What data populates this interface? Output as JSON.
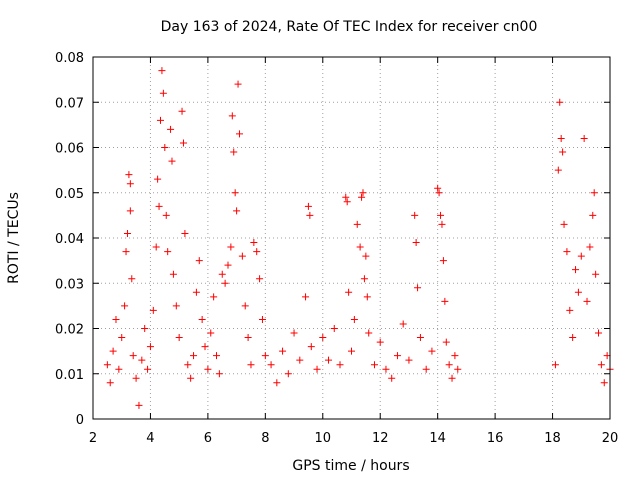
{
  "chart_data": {
    "type": "scatter",
    "title": "Day 163 of 2024, Rate Of TEC Index for receiver cn00",
    "xlabel": "GPS time / hours",
    "ylabel": "ROTI / TECUs",
    "xlim": [
      2,
      20
    ],
    "ylim": [
      0,
      0.08
    ],
    "x_ticks": [
      2,
      4,
      6,
      8,
      10,
      12,
      14,
      16,
      18,
      20
    ],
    "y_ticks": [
      0,
      0.01,
      0.02,
      0.03,
      0.04,
      0.05,
      0.06,
      0.07,
      0.08
    ],
    "x_tick_labels": [
      "2",
      "4",
      "6",
      "8",
      "10",
      "12",
      "14",
      "16",
      "18",
      "20"
    ],
    "y_tick_labels": [
      "0",
      "0.01",
      "0.02",
      "0.03",
      "0.04",
      "0.05",
      "0.06",
      "0.07",
      "0.08"
    ],
    "grid": true,
    "marker": "+",
    "color": "#ff0000",
    "series": [
      {
        "name": "ROTI",
        "points": [
          [
            2.5,
            0.012
          ],
          [
            2.6,
            0.008
          ],
          [
            2.7,
            0.015
          ],
          [
            2.8,
            0.022
          ],
          [
            2.9,
            0.011
          ],
          [
            3.0,
            0.018
          ],
          [
            3.1,
            0.025
          ],
          [
            3.15,
            0.037
          ],
          [
            3.2,
            0.041
          ],
          [
            3.25,
            0.054
          ],
          [
            3.3,
            0.052
          ],
          [
            3.3,
            0.046
          ],
          [
            3.35,
            0.031
          ],
          [
            3.4,
            0.014
          ],
          [
            3.5,
            0.009
          ],
          [
            3.6,
            0.003
          ],
          [
            3.7,
            0.013
          ],
          [
            3.8,
            0.02
          ],
          [
            3.9,
            0.011
          ],
          [
            4.0,
            0.016
          ],
          [
            4.1,
            0.024
          ],
          [
            4.2,
            0.038
          ],
          [
            4.25,
            0.053
          ],
          [
            4.3,
            0.047
          ],
          [
            4.35,
            0.066
          ],
          [
            4.4,
            0.077
          ],
          [
            4.45,
            0.072
          ],
          [
            4.5,
            0.06
          ],
          [
            4.55,
            0.045
          ],
          [
            4.6,
            0.037
          ],
          [
            4.7,
            0.064
          ],
          [
            4.75,
            0.057
          ],
          [
            4.8,
            0.032
          ],
          [
            4.9,
            0.025
          ],
          [
            5.0,
            0.018
          ],
          [
            5.1,
            0.068
          ],
          [
            5.15,
            0.061
          ],
          [
            5.2,
            0.041
          ],
          [
            5.3,
            0.012
          ],
          [
            5.4,
            0.009
          ],
          [
            5.5,
            0.014
          ],
          [
            5.6,
            0.028
          ],
          [
            5.7,
            0.035
          ],
          [
            5.8,
            0.022
          ],
          [
            5.9,
            0.016
          ],
          [
            6.0,
            0.011
          ],
          [
            6.1,
            0.019
          ],
          [
            6.2,
            0.027
          ],
          [
            6.3,
            0.014
          ],
          [
            6.4,
            0.01
          ],
          [
            6.5,
            0.032
          ],
          [
            6.6,
            0.03
          ],
          [
            6.7,
            0.034
          ],
          [
            6.8,
            0.038
          ],
          [
            6.85,
            0.067
          ],
          [
            6.9,
            0.059
          ],
          [
            6.95,
            0.05
          ],
          [
            7.0,
            0.046
          ],
          [
            7.05,
            0.074
          ],
          [
            7.1,
            0.063
          ],
          [
            7.2,
            0.036
          ],
          [
            7.3,
            0.025
          ],
          [
            7.4,
            0.018
          ],
          [
            7.5,
            0.012
          ],
          [
            7.6,
            0.039
          ],
          [
            7.7,
            0.037
          ],
          [
            7.8,
            0.031
          ],
          [
            7.9,
            0.022
          ],
          [
            8.0,
            0.014
          ],
          [
            8.2,
            0.012
          ],
          [
            8.4,
            0.008
          ],
          [
            8.6,
            0.015
          ],
          [
            8.8,
            0.01
          ],
          [
            9.0,
            0.019
          ],
          [
            9.2,
            0.013
          ],
          [
            9.4,
            0.027
          ],
          [
            9.5,
            0.047
          ],
          [
            9.55,
            0.045
          ],
          [
            9.6,
            0.016
          ],
          [
            9.8,
            0.011
          ],
          [
            10.0,
            0.018
          ],
          [
            10.2,
            0.013
          ],
          [
            10.4,
            0.02
          ],
          [
            10.6,
            0.012
          ],
          [
            10.8,
            0.049
          ],
          [
            10.85,
            0.048
          ],
          [
            10.9,
            0.028
          ],
          [
            11.0,
            0.015
          ],
          [
            11.1,
            0.022
          ],
          [
            11.2,
            0.043
          ],
          [
            11.3,
            0.038
          ],
          [
            11.35,
            0.049
          ],
          [
            11.4,
            0.05
          ],
          [
            11.45,
            0.031
          ],
          [
            11.5,
            0.036
          ],
          [
            11.55,
            0.027
          ],
          [
            11.6,
            0.019
          ],
          [
            11.8,
            0.012
          ],
          [
            12.0,
            0.017
          ],
          [
            12.2,
            0.011
          ],
          [
            12.4,
            0.009
          ],
          [
            12.6,
            0.014
          ],
          [
            12.8,
            0.021
          ],
          [
            13.0,
            0.013
          ],
          [
            13.2,
            0.045
          ],
          [
            13.25,
            0.039
          ],
          [
            13.3,
            0.029
          ],
          [
            13.4,
            0.018
          ],
          [
            13.6,
            0.011
          ],
          [
            13.8,
            0.015
          ],
          [
            14.0,
            0.051
          ],
          [
            14.05,
            0.05
          ],
          [
            14.1,
            0.045
          ],
          [
            14.15,
            0.043
          ],
          [
            14.2,
            0.035
          ],
          [
            14.25,
            0.026
          ],
          [
            14.3,
            0.017
          ],
          [
            14.4,
            0.012
          ],
          [
            14.5,
            0.009
          ],
          [
            14.6,
            0.014
          ],
          [
            14.7,
            0.011
          ],
          [
            18.1,
            0.012
          ],
          [
            18.2,
            0.055
          ],
          [
            18.25,
            0.07
          ],
          [
            18.3,
            0.062
          ],
          [
            18.35,
            0.059
          ],
          [
            18.4,
            0.043
          ],
          [
            18.5,
            0.037
          ],
          [
            18.6,
            0.024
          ],
          [
            18.7,
            0.018
          ],
          [
            18.8,
            0.033
          ],
          [
            18.9,
            0.028
          ],
          [
            19.0,
            0.036
          ],
          [
            19.1,
            0.062
          ],
          [
            19.2,
            0.026
          ],
          [
            19.3,
            0.038
          ],
          [
            19.4,
            0.045
          ],
          [
            19.45,
            0.05
          ],
          [
            19.5,
            0.032
          ],
          [
            19.6,
            0.019
          ],
          [
            19.7,
            0.012
          ],
          [
            19.8,
            0.008
          ],
          [
            19.9,
            0.014
          ],
          [
            20.0,
            0.011
          ]
        ]
      }
    ]
  }
}
